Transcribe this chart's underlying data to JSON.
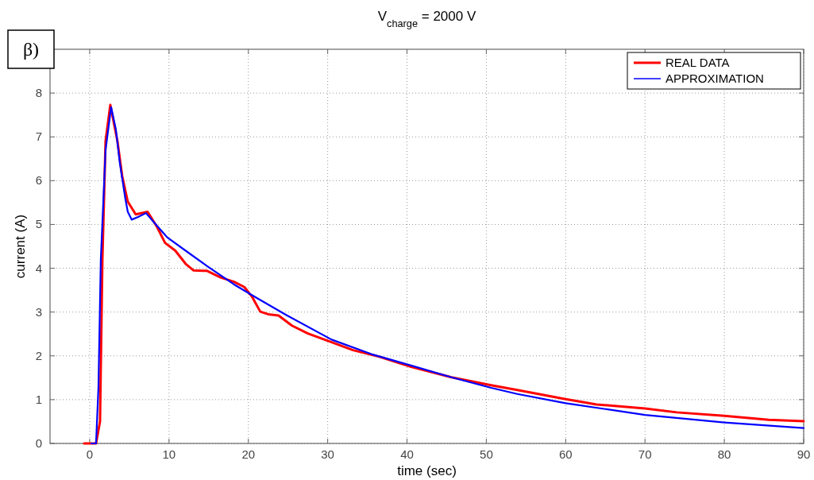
{
  "chart_data": {
    "type": "line",
    "title": "V$_{charge}$ = 2000 V",
    "xlabel": "time (sec)",
    "ylabel": "current (A)",
    "annotations": [
      "β)"
    ],
    "xlim": [
      -5,
      90
    ],
    "xticks": [
      0,
      10,
      20,
      30,
      40,
      50,
      60,
      70,
      80,
      90
    ],
    "ylim": [
      0,
      9
    ],
    "yticks": [
      0,
      1,
      2,
      3,
      4,
      5,
      6,
      7,
      8
    ],
    "grid": true,
    "legend": "top right",
    "marker": "none",
    "line_style": "solid",
    "series": [
      {
        "name": "REAL DATA",
        "color": "#ff0000",
        "x": [
          -0.7,
          0.8,
          1.3,
          1.6,
          2.0,
          2.6,
          3.5,
          4.1,
          4.8,
          5.8,
          7.3,
          8.5,
          9.5,
          10.8,
          12.1,
          13.1,
          14.8,
          16.5,
          18.2,
          19.5,
          20.5,
          21.5,
          22.5,
          23.8,
          25.5,
          27.5,
          30.5,
          33.2,
          36.5,
          40.5,
          45.6,
          50.6,
          53.9,
          60,
          63.9,
          70,
          74,
          80,
          85.6,
          90
        ],
        "values": [
          0,
          0,
          0.5,
          4.2,
          6.9,
          7.73,
          6.9,
          6.1,
          5.52,
          5.23,
          5.29,
          4.94,
          4.58,
          4.4,
          4.1,
          3.95,
          3.94,
          3.79,
          3.69,
          3.57,
          3.34,
          3.01,
          2.95,
          2.92,
          2.69,
          2.51,
          2.31,
          2.13,
          1.98,
          1.75,
          1.51,
          1.33,
          1.22,
          1.01,
          0.89,
          0.8,
          0.71,
          0.63,
          0.54,
          0.51
        ]
      },
      {
        "name": "APPROXIMATION",
        "color": "#0000ff",
        "x": [
          0.2,
          0.8,
          1.1,
          1.4,
          2.0,
          2.7,
          3.3,
          3.8,
          4.5,
          4.8,
          5.3,
          6.1,
          7.1,
          8.1,
          9.8,
          12.1,
          14.8,
          18.2,
          20.9,
          24.8,
          30.5,
          35.5,
          40.5,
          45.6,
          50.6,
          53.9,
          60,
          70,
          80,
          90
        ],
        "values": [
          0,
          0,
          1.27,
          4.2,
          6.7,
          7.68,
          7.17,
          6.4,
          5.58,
          5.29,
          5.11,
          5.17,
          5.26,
          5.05,
          4.7,
          4.4,
          4.05,
          3.63,
          3.34,
          2.93,
          2.37,
          2.04,
          1.78,
          1.51,
          1.27,
          1.13,
          0.92,
          0.65,
          0.48,
          0.35
        ]
      }
    ]
  }
}
